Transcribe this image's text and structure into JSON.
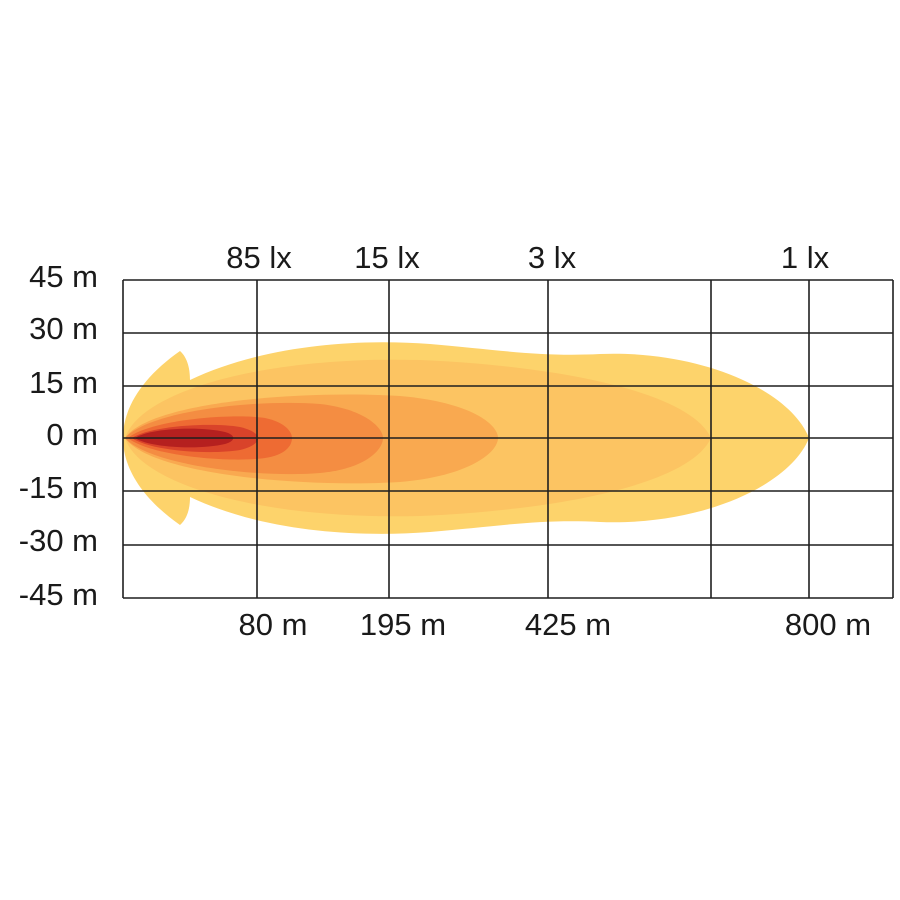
{
  "y_labels": [
    "45 m",
    "30 m",
    "15 m",
    "0 m",
    "-15 m",
    "-30 m",
    "-45 m"
  ],
  "lux_labels": [
    "85 lx",
    "15 lx",
    "3 lx",
    "1 lx"
  ],
  "distance_labels": [
    "80 m",
    "195 m",
    "425 m",
    "800 m"
  ]
}
